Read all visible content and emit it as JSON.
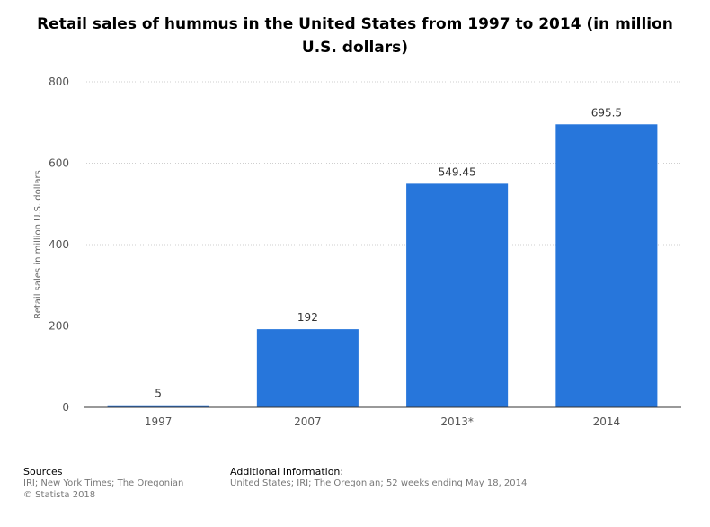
{
  "title": "Retail sales of hummus in the United States from 1997 to 2014 (in million U.S. dollars)",
  "chart_data": {
    "type": "bar",
    "title": "Retail sales of hummus in the United States from 1997 to 2014 (in million U.S. dollars)",
    "categories": [
      "1997",
      "2007",
      "2013*",
      "2014"
    ],
    "values": [
      5,
      192,
      549.45,
      695.5
    ],
    "value_labels": [
      "5",
      "192",
      "549.45",
      "695.5"
    ],
    "xlabel": "",
    "ylabel": "Retail sales in million U.S. dollars",
    "ylim": [
      0,
      800
    ],
    "yticks": [
      0,
      200,
      400,
      600,
      800
    ],
    "grid": true,
    "bar_color": "#2776db"
  },
  "footer": {
    "sources_label": "Sources",
    "sources_text": "IRI; New York Times; The Oregonian",
    "copyright": "© Statista 2018",
    "additional_label": "Additional Information:",
    "additional_text": "United States; IRI; The Oregonian; 52 weeks ending May 18, 2014"
  }
}
